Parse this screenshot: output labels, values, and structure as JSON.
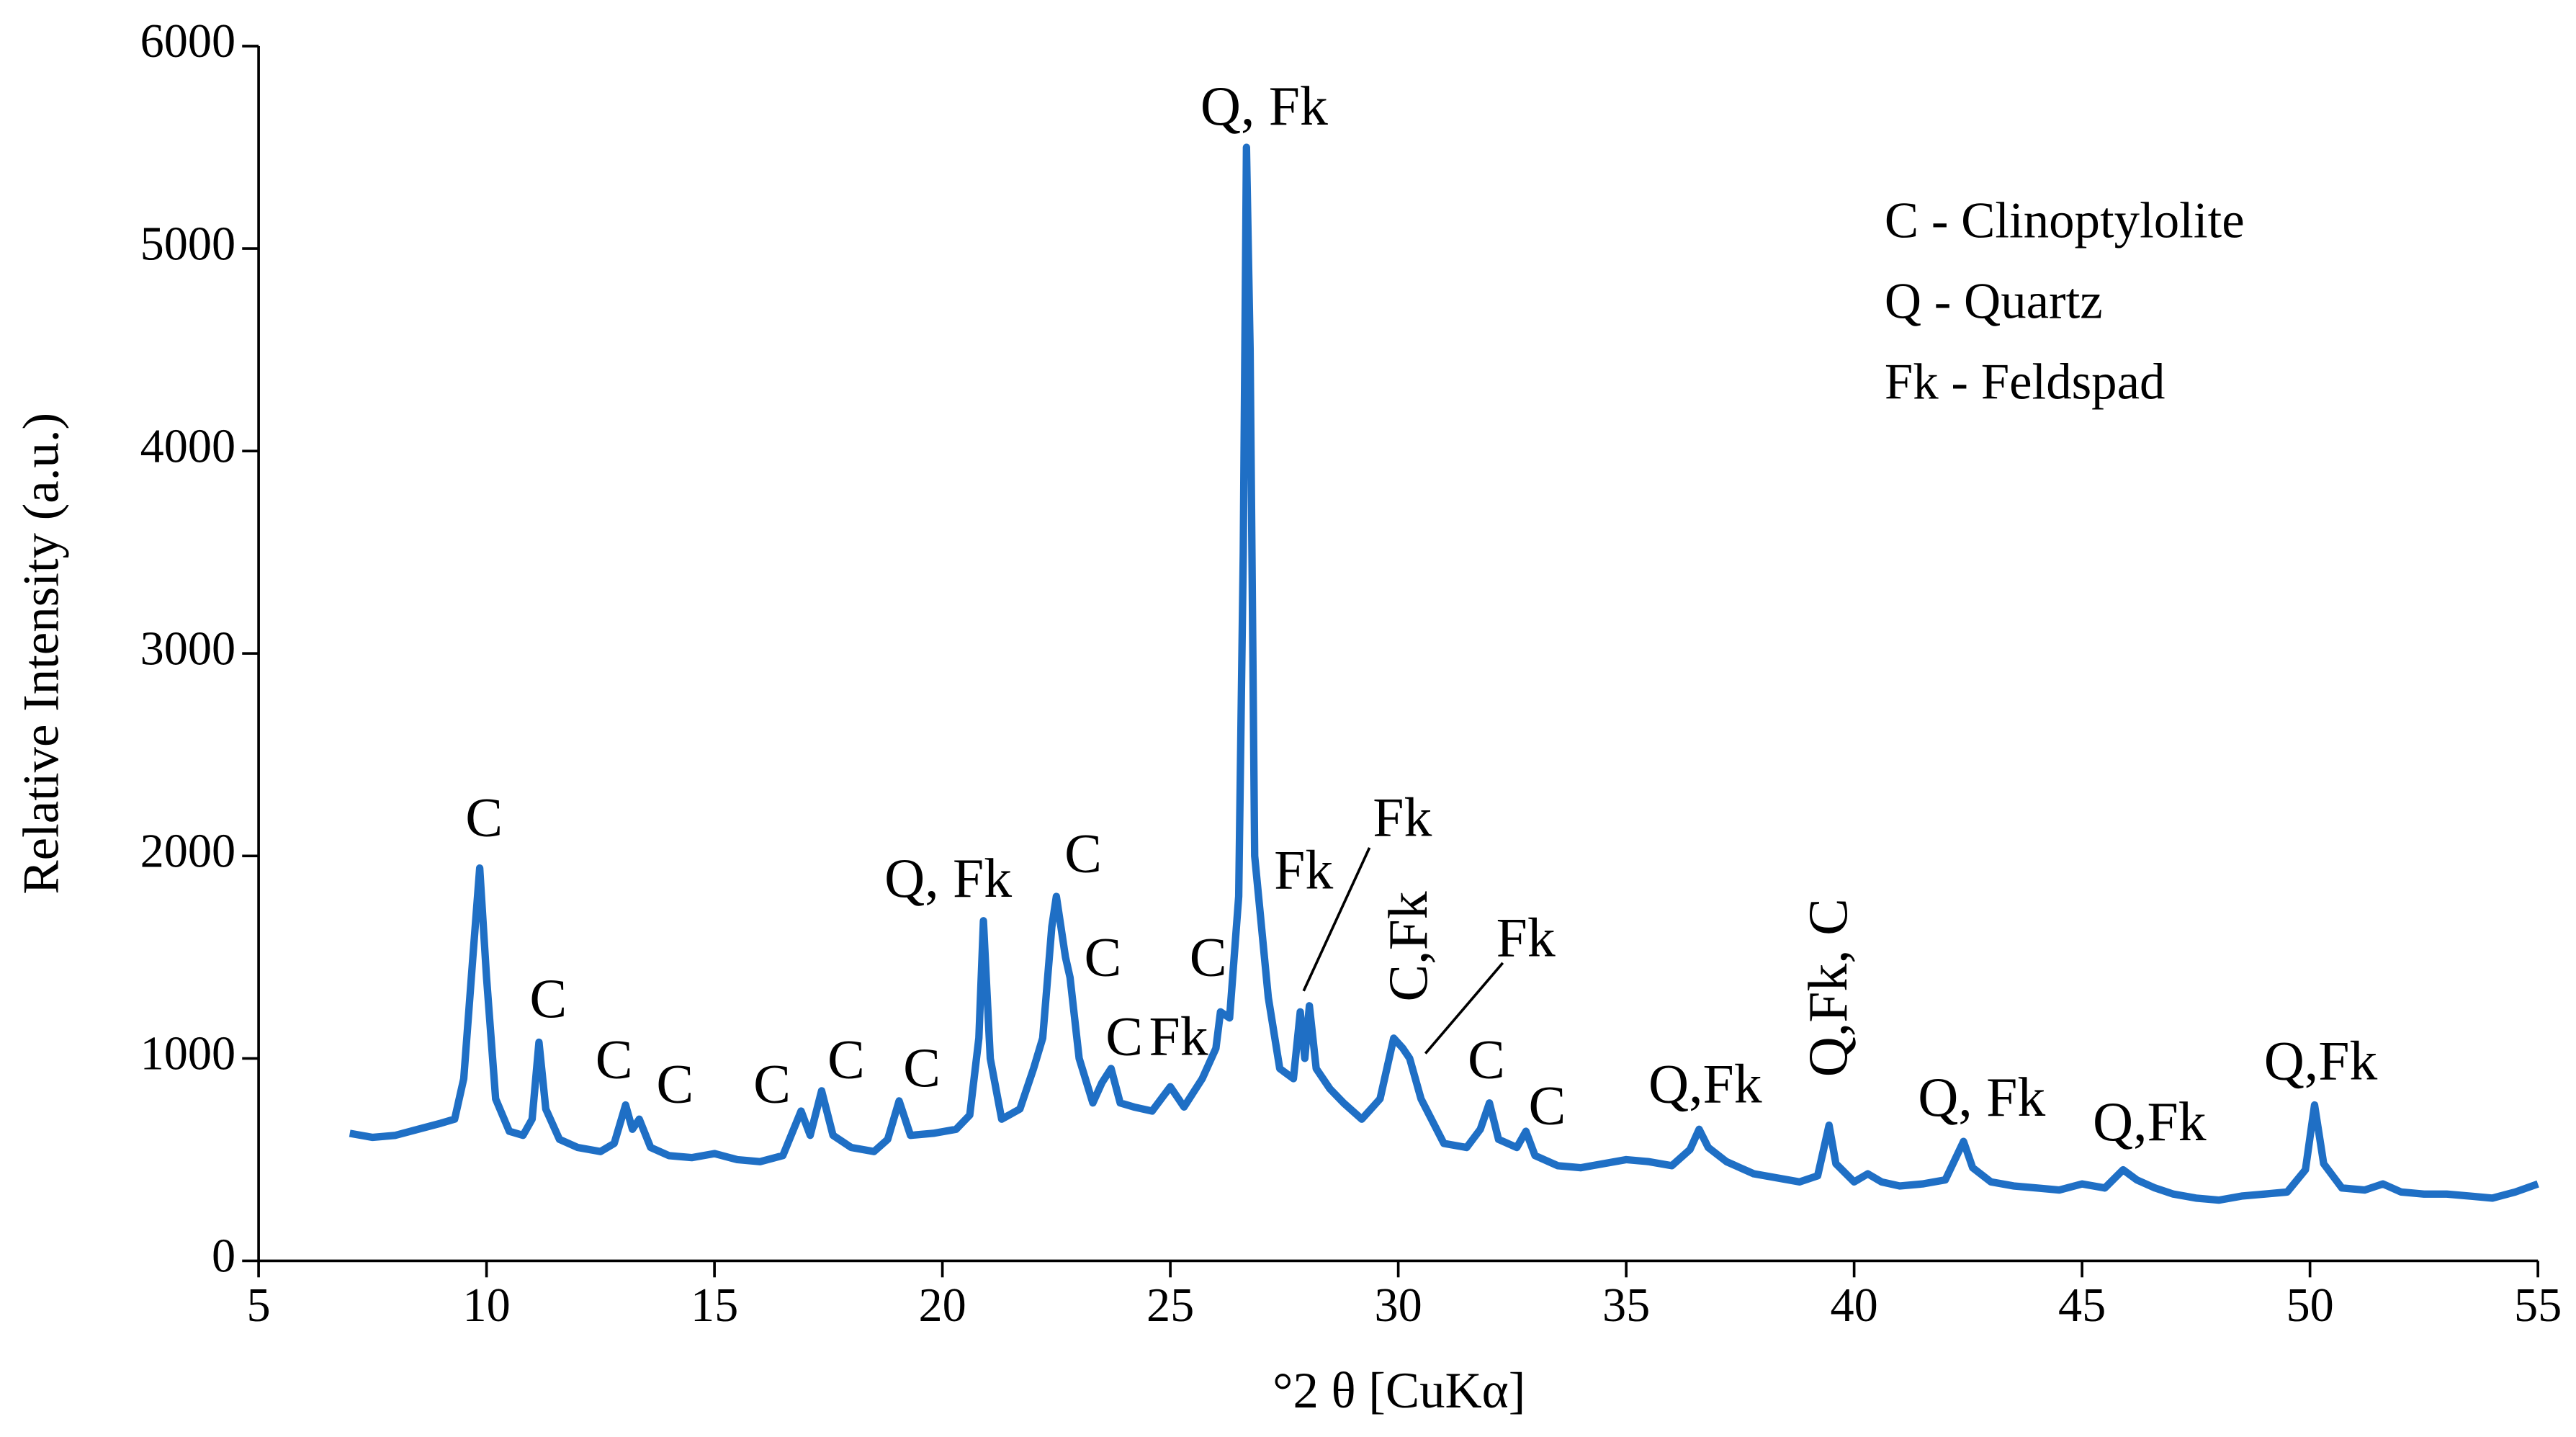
{
  "chart_data": {
    "type": "line",
    "x_label": "°2 θ [CuKα]",
    "y_label": "Relative Intensity (a.u.)",
    "xlim": [
      5,
      55
    ],
    "ylim": [
      0,
      6000
    ],
    "xticks": [
      5,
      10,
      15,
      20,
      25,
      30,
      35,
      40,
      45,
      50,
      55
    ],
    "yticks": [
      0,
      1000,
      2000,
      3000,
      4000,
      5000,
      6000
    ],
    "grid": false,
    "series": [
      {
        "color": "#1f6fc5",
        "x": [
          7.0,
          7.5,
          8.0,
          8.5,
          9.0,
          9.3,
          9.5,
          9.7,
          9.85,
          10.0,
          10.2,
          10.5,
          10.8,
          11.0,
          11.15,
          11.3,
          11.6,
          12.0,
          12.5,
          12.8,
          13.05,
          13.2,
          13.35,
          13.6,
          14.0,
          14.5,
          15.0,
          15.5,
          16.0,
          16.5,
          16.9,
          17.1,
          17.35,
          17.6,
          18.0,
          18.5,
          18.8,
          19.05,
          19.3,
          19.8,
          20.3,
          20.6,
          20.8,
          20.9,
          21.05,
          21.3,
          21.7,
          22.0,
          22.2,
          22.4,
          22.5,
          22.7,
          22.8,
          23.0,
          23.3,
          23.5,
          23.7,
          23.9,
          24.2,
          24.6,
          25.0,
          25.3,
          25.7,
          26.0,
          26.1,
          26.3,
          26.5,
          26.6,
          26.67,
          26.75,
          26.85,
          27.0,
          27.15,
          27.4,
          27.7,
          27.85,
          27.95,
          28.05,
          28.2,
          28.5,
          28.8,
          29.2,
          29.6,
          29.9,
          30.1,
          30.25,
          30.5,
          31.0,
          31.5,
          31.8,
          32.0,
          32.2,
          32.6,
          32.8,
          33.0,
          33.5,
          34.0,
          34.5,
          35.0,
          35.5,
          36.0,
          36.4,
          36.6,
          36.8,
          37.2,
          37.8,
          38.3,
          38.8,
          39.2,
          39.45,
          39.6,
          40.0,
          40.3,
          40.6,
          41.0,
          41.5,
          42.0,
          42.4,
          42.6,
          43.0,
          43.5,
          44.0,
          44.5,
          45.0,
          45.5,
          45.9,
          46.2,
          46.6,
          47.0,
          47.5,
          48.0,
          48.5,
          49.0,
          49.5,
          49.9,
          50.1,
          50.3,
          50.7,
          51.2,
          51.6,
          52.0,
          52.5,
          53.0,
          53.5,
          54.0,
          54.5,
          55.0
        ],
        "values": [
          630,
          610,
          620,
          650,
          680,
          700,
          900,
          1500,
          1940,
          1400,
          800,
          640,
          620,
          700,
          1080,
          750,
          600,
          560,
          540,
          580,
          770,
          650,
          700,
          560,
          520,
          510,
          530,
          500,
          490,
          520,
          740,
          620,
          840,
          620,
          560,
          540,
          600,
          790,
          620,
          630,
          650,
          720,
          1100,
          1680,
          1000,
          700,
          750,
          950,
          1100,
          1650,
          1800,
          1500,
          1400,
          1000,
          780,
          880,
          950,
          780,
          760,
          740,
          860,
          760,
          900,
          1050,
          1230,
          1200,
          1800,
          3500,
          5500,
          4500,
          2000,
          1650,
          1300,
          950,
          900,
          1230,
          1000,
          1260,
          950,
          850,
          780,
          700,
          800,
          1100,
          1050,
          1000,
          800,
          580,
          560,
          650,
          780,
          600,
          560,
          640,
          520,
          470,
          460,
          480,
          500,
          490,
          470,
          550,
          650,
          560,
          490,
          430,
          410,
          390,
          420,
          670,
          480,
          390,
          430,
          390,
          370,
          380,
          400,
          590,
          460,
          390,
          370,
          360,
          350,
          380,
          360,
          450,
          400,
          360,
          330,
          310,
          300,
          320,
          330,
          340,
          450,
          770,
          480,
          360,
          350,
          380,
          340,
          330,
          330,
          320,
          310,
          340,
          380
        ]
      }
    ],
    "annotations": [
      "C",
      "C",
      "C",
      "C",
      "C",
      "C",
      "C",
      "Q, Fk",
      "C",
      "C",
      "C",
      "Fk",
      "C",
      "Q, Fk",
      "Fk",
      "Fk",
      "C,Fk",
      "Fk",
      "C",
      "C",
      "Q,Fk",
      "Q,Fk, C",
      "Q, Fk",
      "Q,Fk",
      "Q,Fk"
    ],
    "key": [
      "C - Clinoptylolite",
      "Q - Quartz",
      "Fk - Feldspad"
    ]
  }
}
